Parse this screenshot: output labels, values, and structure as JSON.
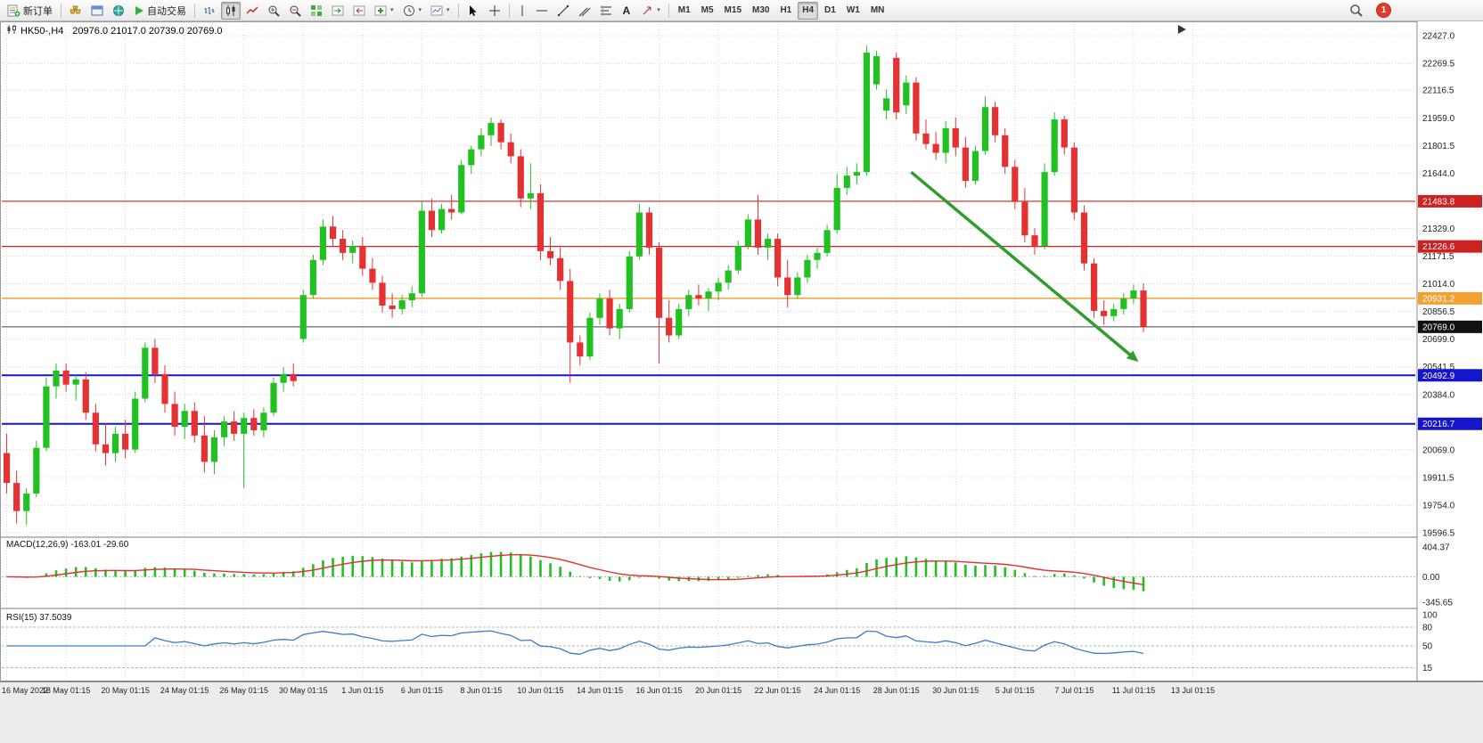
{
  "toolbar": {
    "new_order": "新订单",
    "autotrading": "自动交易",
    "text_tool": "A",
    "timeframes": [
      "M1",
      "M5",
      "M15",
      "M30",
      "H1",
      "H4",
      "D1",
      "W1",
      "MN"
    ],
    "active_timeframe": "H4",
    "notification_count": "1"
  },
  "chart_header": {
    "symbol_period": "HK50-,H4",
    "ohlc_text": "20976.0 21017.0 20739.0 20769.0"
  },
  "indicator_labels": {
    "macd": "MACD(12,26,9) -163.01 -29.60",
    "rsi": "RSI(15) 37.5039"
  },
  "chart_data": {
    "type": "candlestick",
    "symbol": "HK50-",
    "period": "H4",
    "ohlc_current": {
      "open": 20976.0,
      "high": 21017.0,
      "low": 20739.0,
      "close": 20769.0
    },
    "up_color": "#22c122",
    "down_color": "#e53131",
    "price_axis": {
      "min": 19596.5,
      "max": 22427.0,
      "ticks": [
        22427.0,
        22269.5,
        22116.5,
        21959.0,
        21801.5,
        21644.0,
        21329.0,
        21171.5,
        21014.0,
        20856.5,
        20699.0,
        20541.5,
        20384.0,
        20069.0,
        19911.5,
        19754.0,
        19596.5
      ]
    },
    "level_lines": [
      {
        "price": 21483.8,
        "color": "#cc2222",
        "badge": "#cc2222",
        "width": 1.2
      },
      {
        "price": 21226.6,
        "color": "#cc2222",
        "badge": "#cc2222",
        "width": 1.2
      },
      {
        "price": 20931.2,
        "color": "#efa233",
        "badge": "#efa233",
        "width": 1.6
      },
      {
        "price": 20769.0,
        "color": "#444444",
        "badge": "#111111",
        "width": 1
      },
      {
        "price": 20492.9,
        "color": "#1515cc",
        "badge": "#1515cc",
        "width": 2
      },
      {
        "price": 20216.7,
        "color": "#1515cc",
        "badge": "#1515cc",
        "width": 2
      }
    ],
    "time_labels": [
      "16 May 2022",
      "18 May 01:15",
      "20 May 01:15",
      "24 May 01:15",
      "26 May 01:15",
      "30 May 01:15",
      "1 Jun 01:15",
      "6 Jun 01:15",
      "8 Jun 01:15",
      "10 Jun 01:15",
      "14 Jun 01:15",
      "16 Jun 01:15",
      "20 Jun 01:15",
      "22 Jun 01:15",
      "24 Jun 01:15",
      "28 Jun 01:15",
      "30 Jun 01:15",
      "5 Jul 01:15",
      "7 Jul 01:15",
      "11 Jul 01:15",
      "13 Jul 01:15"
    ],
    "bars_per_label": 6,
    "total_slots": 143,
    "shift_marker_slot": 118.5,
    "candles": [
      [
        20050,
        20160,
        19820,
        19880
      ],
      [
        19880,
        19950,
        19650,
        19720
      ],
      [
        19720,
        19850,
        19640,
        19820
      ],
      [
        19820,
        20120,
        19800,
        20080
      ],
      [
        20080,
        20480,
        20060,
        20430
      ],
      [
        20430,
        20560,
        20360,
        20520
      ],
      [
        20520,
        20560,
        20400,
        20440
      ],
      [
        20440,
        20500,
        20350,
        20470
      ],
      [
        20470,
        20510,
        20240,
        20280
      ],
      [
        20280,
        20330,
        20060,
        20100
      ],
      [
        20100,
        20220,
        19980,
        20050
      ],
      [
        20050,
        20200,
        20000,
        20160
      ],
      [
        20160,
        20240,
        20020,
        20070
      ],
      [
        20070,
        20400,
        20050,
        20360
      ],
      [
        20360,
        20680,
        20340,
        20650
      ],
      [
        20650,
        20700,
        20450,
        20500
      ],
      [
        20500,
        20550,
        20280,
        20330
      ],
      [
        20330,
        20400,
        20150,
        20200
      ],
      [
        20200,
        20330,
        20130,
        20290
      ],
      [
        20290,
        20340,
        20110,
        20150
      ],
      [
        20150,
        20260,
        19940,
        20000
      ],
      [
        20000,
        20180,
        19930,
        20140
      ],
      [
        20140,
        20260,
        20090,
        20230
      ],
      [
        20230,
        20290,
        20120,
        20160
      ],
      [
        20160,
        20280,
        19850,
        20250
      ],
      [
        20250,
        20300,
        20150,
        20180
      ],
      [
        20180,
        20310,
        20140,
        20280
      ],
      [
        20280,
        20480,
        20260,
        20450
      ],
      [
        20450,
        20540,
        20400,
        20500
      ],
      [
        20500,
        20560,
        20430,
        20460
      ],
      [
        20700,
        20980,
        20680,
        20950
      ],
      [
        20950,
        21180,
        20930,
        21150
      ],
      [
        21150,
        21380,
        21120,
        21340
      ],
      [
        21340,
        21400,
        21230,
        21270
      ],
      [
        21270,
        21320,
        21150,
        21190
      ],
      [
        21190,
        21260,
        21130,
        21230
      ],
      [
        21230,
        21280,
        21060,
        21100
      ],
      [
        21100,
        21160,
        20980,
        21020
      ],
      [
        21020,
        21060,
        20850,
        20890
      ],
      [
        20890,
        20960,
        20820,
        20870
      ],
      [
        20870,
        20950,
        20840,
        20920
      ],
      [
        20920,
        21000,
        20880,
        20960
      ],
      [
        20960,
        21480,
        20940,
        21430
      ],
      [
        21430,
        21500,
        21280,
        21320
      ],
      [
        21320,
        21470,
        21300,
        21440
      ],
      [
        21440,
        21520,
        21380,
        21420
      ],
      [
        21420,
        21720,
        21410,
        21690
      ],
      [
        21690,
        21800,
        21640,
        21780
      ],
      [
        21780,
        21900,
        21740,
        21860
      ],
      [
        21860,
        21960,
        21800,
        21930
      ],
      [
        21930,
        21950,
        21780,
        21820
      ],
      [
        21820,
        21870,
        21700,
        21740
      ],
      [
        21740,
        21780,
        21450,
        21500
      ],
      [
        21500,
        21700,
        21440,
        21530
      ],
      [
        21530,
        21580,
        21150,
        21200
      ],
      [
        21200,
        21280,
        21120,
        21160
      ],
      [
        21160,
        21220,
        20980,
        21030
      ],
      [
        21030,
        21100,
        20450,
        20680
      ],
      [
        20680,
        20720,
        20550,
        20600
      ],
      [
        20600,
        20850,
        20580,
        20820
      ],
      [
        20820,
        20960,
        20780,
        20930
      ],
      [
        20930,
        20980,
        20720,
        20760
      ],
      [
        20760,
        20900,
        20700,
        20870
      ],
      [
        20870,
        21200,
        20850,
        21170
      ],
      [
        21170,
        21470,
        21150,
        21420
      ],
      [
        21420,
        21450,
        21180,
        21220
      ],
      [
        21220,
        21250,
        20560,
        20820
      ],
      [
        20820,
        20920,
        20680,
        20720
      ],
      [
        20720,
        20900,
        20700,
        20870
      ],
      [
        20870,
        20980,
        20830,
        20950
      ],
      [
        20950,
        21010,
        20890,
        20930
      ],
      [
        20930,
        20990,
        20860,
        20970
      ],
      [
        20970,
        21050,
        20920,
        21020
      ],
      [
        21020,
        21120,
        20980,
        21090
      ],
      [
        21090,
        21260,
        21070,
        21230
      ],
      [
        21230,
        21410,
        21210,
        21380
      ],
      [
        21380,
        21520,
        21180,
        21220
      ],
      [
        21220,
        21300,
        21150,
        21270
      ],
      [
        21270,
        21300,
        21000,
        21050
      ],
      [
        21050,
        21150,
        20880,
        20950
      ],
      [
        20950,
        21080,
        20930,
        21050
      ],
      [
        21050,
        21180,
        21020,
        21150
      ],
      [
        21150,
        21220,
        21100,
        21190
      ],
      [
        21190,
        21350,
        21170,
        21320
      ],
      [
        21320,
        21640,
        21300,
        21560
      ],
      [
        21560,
        21680,
        21520,
        21630
      ],
      [
        21630,
        21700,
        21580,
        21650
      ],
      [
        21650,
        22370,
        21630,
        22330
      ],
      [
        22150,
        22340,
        22120,
        22310
      ],
      [
        22000,
        22120,
        21950,
        22070
      ],
      [
        22300,
        22330,
        21950,
        21990
      ],
      [
        22030,
        22200,
        21980,
        22160
      ],
      [
        22160,
        22190,
        21830,
        21870
      ],
      [
        21870,
        21950,
        21780,
        21810
      ],
      [
        21810,
        21880,
        21720,
        21760
      ],
      [
        21760,
        21940,
        21700,
        21900
      ],
      [
        21900,
        21960,
        21740,
        21790
      ],
      [
        21790,
        21850,
        21560,
        21600
      ],
      [
        21600,
        21800,
        21580,
        21770
      ],
      [
        21770,
        22080,
        21750,
        22020
      ],
      [
        22020,
        22050,
        21820,
        21860
      ],
      [
        21860,
        21900,
        21640,
        21680
      ],
      [
        21680,
        21720,
        21440,
        21480
      ],
      [
        21480,
        21560,
        21250,
        21290
      ],
      [
        21290,
        21330,
        21180,
        21230
      ],
      [
        21230,
        21700,
        21210,
        21650
      ],
      [
        21650,
        21990,
        21630,
        21950
      ],
      [
        21950,
        21970,
        21750,
        21790
      ],
      [
        21790,
        21820,
        21380,
        21420
      ],
      [
        21420,
        21460,
        21090,
        21130
      ],
      [
        21130,
        21160,
        20820,
        20860
      ],
      [
        20860,
        20920,
        20780,
        20830
      ],
      [
        20830,
        20900,
        20800,
        20870
      ],
      [
        20870,
        20960,
        20840,
        20930
      ],
      [
        20930,
        21010,
        20900,
        20976
      ],
      [
        20976,
        21017,
        20739,
        20769
      ]
    ],
    "trend_arrow": {
      "from_slot": 91.5,
      "from_price": 21650,
      "to_slot": 114.5,
      "to_price": 20570,
      "color": "#2f9e2f"
    },
    "macd": {
      "params": "12,26,9",
      "value": -163.01,
      "signal_value": -29.6,
      "axis_ticks": [
        404.37,
        0.0,
        -345.65
      ],
      "range": [
        -345.65,
        404.37
      ],
      "histogram_color": "#22c122",
      "signal_color": "#e03030"
    },
    "rsi": {
      "period": 15,
      "value": 37.5039,
      "axis_ticks": [
        100,
        80,
        50,
        15
      ],
      "levels": [
        80,
        50,
        15
      ],
      "range": [
        0,
        100
      ],
      "line_color": "#3b7dc4"
    }
  }
}
